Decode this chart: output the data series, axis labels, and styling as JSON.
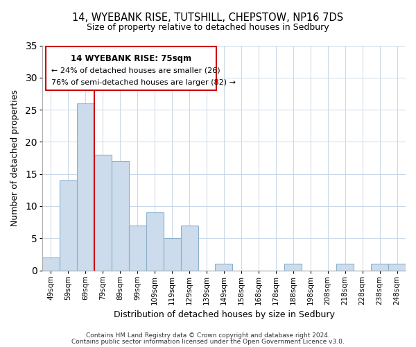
{
  "title": "14, WYEBANK RISE, TUTSHILL, CHEPSTOW, NP16 7DS",
  "subtitle": "Size of property relative to detached houses in Sedbury",
  "xlabel": "Distribution of detached houses by size in Sedbury",
  "ylabel": "Number of detached properties",
  "bar_labels": [
    "49sqm",
    "59sqm",
    "69sqm",
    "79sqm",
    "89sqm",
    "99sqm",
    "109sqm",
    "119sqm",
    "129sqm",
    "139sqm",
    "149sqm",
    "158sqm",
    "168sqm",
    "178sqm",
    "188sqm",
    "198sqm",
    "208sqm",
    "218sqm",
    "228sqm",
    "238sqm",
    "248sqm"
  ],
  "bar_values": [
    2,
    14,
    26,
    18,
    17,
    7,
    9,
    5,
    7,
    0,
    1,
    0,
    0,
    0,
    1,
    0,
    0,
    1,
    0,
    1,
    1
  ],
  "bar_color": "#ccdcec",
  "bar_edge_color": "#8ab0cc",
  "vline_color": "#cc0000",
  "annotation_title": "14 WYEBANK RISE: 75sqm",
  "annotation_line1": "← 24% of detached houses are smaller (26)",
  "annotation_line2": "76% of semi-detached houses are larger (82) →",
  "annotation_box_color": "#ffffff",
  "annotation_border_color": "#cc0000",
  "ylim": [
    0,
    35
  ],
  "yticks": [
    0,
    5,
    10,
    15,
    20,
    25,
    30,
    35
  ],
  "footer1": "Contains HM Land Registry data © Crown copyright and database right 2024.",
  "footer2": "Contains public sector information licensed under the Open Government Licence v3.0."
}
